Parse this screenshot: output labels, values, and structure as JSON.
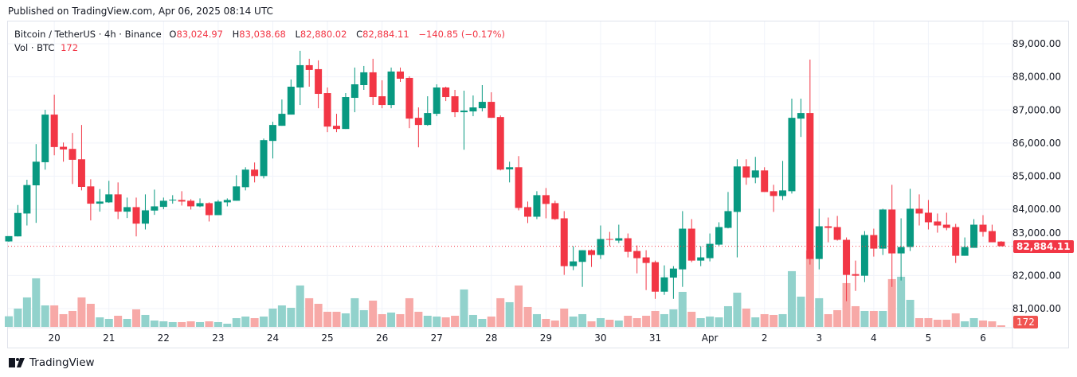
{
  "published": "Published on TradingView.com, Apr 06, 2025 08:14 UTC",
  "legend": {
    "symbol": "Bitcoin / TetherUS · 4h · Binance",
    "o_label": "O",
    "o": "83,024.97",
    "h_label": "H",
    "h": "83,038.68",
    "l_label": "L",
    "l": "82,880.02",
    "c_label": "C",
    "c": "82,884.11",
    "change": "−140.85 (−0.17%)",
    "vol_label": "Vol · BTC",
    "vol": "172"
  },
  "last_price_tag": "82,884.11",
  "last_volume_tag": "172",
  "footer_brand": "TradingView",
  "colors": {
    "up": "#089981",
    "down": "#f23645",
    "up_volume": "#92d2cc",
    "down_volume": "#f7a9a7",
    "grid": "#f0f3fa"
  },
  "chart_data": {
    "type": "candlestick",
    "interval": "4h",
    "price_axis": {
      "ticks": [
        "89,000.00",
        "88,000.00",
        "87,000.00",
        "86,000.00",
        "85,000.00",
        "84,000.00",
        "83,000.00",
        "82,000.00",
        "81,000.00"
      ],
      "tick_values": [
        89000,
        88000,
        87000,
        86000,
        85000,
        84000,
        83000,
        82000,
        81000
      ]
    },
    "time_axis": {
      "ticks": [
        {
          "label": "20",
          "time": "03-20 00:00"
        },
        {
          "label": "21",
          "time": "03-21 00:00"
        },
        {
          "label": "22",
          "time": "03-22 00:00"
        },
        {
          "label": "23",
          "time": "03-23 00:00"
        },
        {
          "label": "24",
          "time": "03-24 00:00"
        },
        {
          "label": "25",
          "time": "03-25 00:00"
        },
        {
          "label": "26",
          "time": "03-26 00:00"
        },
        {
          "label": "27",
          "time": "03-27 00:00"
        },
        {
          "label": "28",
          "time": "03-28 00:00"
        },
        {
          "label": "29",
          "time": "03-29 00:00"
        },
        {
          "label": "30",
          "time": "03-30 00:00"
        },
        {
          "label": "31",
          "time": "03-31 00:00"
        },
        {
          "label": "Apr",
          "time": "04-01 00:00"
        },
        {
          "label": "2",
          "time": "04-02 00:00"
        },
        {
          "label": "3",
          "time": "04-03 00:00"
        },
        {
          "label": "4",
          "time": "04-04 00:00"
        },
        {
          "label": "5",
          "time": "04-05 00:00"
        },
        {
          "label": "6",
          "time": "04-06 00:00"
        }
      ]
    },
    "last_price": 82884.11,
    "fields": [
      "time",
      "open",
      "high",
      "low",
      "close",
      "volume"
    ],
    "candles": [
      [
        "03-19 04:00",
        83030,
        83190,
        83020,
        83190,
        1148
      ],
      [
        "03-19 08:00",
        83182,
        84130,
        83180,
        83889,
        1980
      ],
      [
        "03-19 12:00",
        83873,
        84892,
        83511,
        84732,
        3186
      ],
      [
        "03-19 16:00",
        84724,
        85968,
        83591,
        85438,
        5252
      ],
      [
        "03-19 20:00",
        85422,
        87004,
        85197,
        86860,
        2325
      ],
      [
        "03-20 00:00",
        86860,
        87462,
        85631,
        85880,
        2325
      ],
      [
        "03-20 04:00",
        85888,
        86017,
        85438,
        85808,
        1378
      ],
      [
        "03-20 08:00",
        85824,
        86306,
        84764,
        85495,
        1722
      ],
      [
        "03-20 12:00",
        85511,
        86547,
        84571,
        84676,
        3186
      ],
      [
        "03-20 16:00",
        84692,
        84908,
        83664,
        84170,
        2497
      ],
      [
        "03-20 20:00",
        84170,
        84611,
        83929,
        84234,
        1033
      ],
      [
        "03-21 00:00",
        84210,
        84860,
        84194,
        84451,
        861
      ],
      [
        "03-21 04:00",
        84451,
        84812,
        83704,
        83929,
        1205
      ],
      [
        "03-21 08:00",
        83929,
        84354,
        83736,
        84065,
        861
      ],
      [
        "03-21 12:00",
        84065,
        84354,
        83182,
        83567,
        1894
      ],
      [
        "03-21 16:00",
        83567,
        84451,
        83391,
        83969,
        1292
      ],
      [
        "03-21 20:00",
        83961,
        84595,
        83832,
        84089,
        689
      ],
      [
        "03-22 00:00",
        84073,
        84354,
        84001,
        84258,
        603
      ],
      [
        "03-22 04:00",
        84266,
        84427,
        84170,
        84290,
        517
      ],
      [
        "03-22 08:00",
        84282,
        84547,
        84113,
        84234,
        517
      ],
      [
        "03-22 12:00",
        84258,
        84306,
        83993,
        84089,
        603
      ],
      [
        "03-22 16:00",
        84089,
        84330,
        84065,
        84186,
        517
      ],
      [
        "03-22 20:00",
        84186,
        84210,
        83632,
        83824,
        603
      ],
      [
        "03-23 00:00",
        83824,
        84282,
        83824,
        84234,
        517
      ],
      [
        "03-23 04:00",
        84210,
        84330,
        84089,
        84282,
        344
      ],
      [
        "03-23 08:00",
        84258,
        85029,
        84258,
        84692,
        947
      ],
      [
        "03-23 12:00",
        84668,
        85270,
        84571,
        85198,
        1119
      ],
      [
        "03-23 16:00",
        85198,
        85414,
        84812,
        85005,
        947
      ],
      [
        "03-23 20:00",
        85005,
        86137,
        84933,
        86089,
        1119
      ],
      [
        "03-24 00:00",
        86065,
        86643,
        85535,
        86547,
        1980
      ],
      [
        "03-24 04:00",
        86522,
        87317,
        86522,
        86884,
        2325
      ],
      [
        "03-24 08:00",
        86860,
        87920,
        86860,
        87703,
        2066
      ],
      [
        "03-24 12:00",
        87679,
        88787,
        87149,
        88353,
        4477
      ],
      [
        "03-24 16:00",
        88353,
        88546,
        87703,
        88209,
        3100
      ],
      [
        "03-24 20:00",
        88233,
        88498,
        87052,
        87486,
        2497
      ],
      [
        "03-25 00:00",
        87510,
        87679,
        86330,
        86498,
        1636
      ],
      [
        "03-25 04:00",
        86522,
        86884,
        86330,
        86426,
        1636
      ],
      [
        "03-25 08:00",
        86426,
        87510,
        86426,
        87390,
        1464
      ],
      [
        "03-25 12:00",
        87366,
        88281,
        86932,
        87775,
        3100
      ],
      [
        "03-25 16:00",
        87751,
        88329,
        87607,
        88137,
        1808
      ],
      [
        "03-25 20:00",
        88137,
        88546,
        87149,
        87390,
        2841
      ],
      [
        "03-26 00:00",
        87414,
        87896,
        87052,
        87149,
        1378
      ],
      [
        "03-26 04:00",
        87149,
        88281,
        87052,
        88161,
        1550
      ],
      [
        "03-26 08:00",
        88161,
        88281,
        87847,
        87944,
        1378
      ],
      [
        "03-26 12:00",
        87968,
        88016,
        86450,
        86739,
        3100
      ],
      [
        "03-26 16:00",
        86763,
        87077,
        85872,
        86547,
        1636
      ],
      [
        "03-26 20:00",
        86547,
        87414,
        86522,
        86908,
        1205
      ],
      [
        "03-27 00:00",
        86884,
        87775,
        86812,
        87679,
        1119
      ],
      [
        "03-27 04:00",
        87679,
        87703,
        87269,
        87390,
        1033
      ],
      [
        "03-27 08:00",
        87414,
        87607,
        86787,
        86932,
        1205
      ],
      [
        "03-27 12:00",
        86932,
        87582,
        85800,
        86980,
        4047
      ],
      [
        "03-27 16:00",
        86956,
        87438,
        86812,
        87077,
        1292
      ],
      [
        "03-27 20:00",
        87052,
        87751,
        86956,
        87245,
        861
      ],
      [
        "03-28 00:00",
        87245,
        87534,
        86763,
        86763,
        1119
      ],
      [
        "03-28 04:00",
        86787,
        86836,
        85174,
        85198,
        3100
      ],
      [
        "03-28 08:00",
        85206,
        85438,
        84812,
        85270,
        2669
      ],
      [
        "03-28 12:00",
        85270,
        85607,
        83968,
        84041,
        4477
      ],
      [
        "03-28 16:00",
        84065,
        84234,
        83584,
        83776,
        2153
      ],
      [
        "03-28 20:00",
        83776,
        84547,
        83704,
        84427,
        1378
      ],
      [
        "03-29 00:00",
        84427,
        84643,
        83728,
        84162,
        861
      ],
      [
        "03-29 04:00",
        84186,
        84258,
        83680,
        83704,
        689
      ],
      [
        "03-29 08:00",
        83728,
        83945,
        82018,
        82283,
        1980
      ],
      [
        "03-29 12:00",
        82283,
        82885,
        82162,
        82427,
        1119
      ],
      [
        "03-29 16:00",
        82412,
        82764,
        81657,
        82764,
        1378
      ],
      [
        "03-29 20:00",
        82764,
        82788,
        82259,
        82620,
        603
      ],
      [
        "03-30 00:00",
        82620,
        83511,
        82500,
        83102,
        947
      ],
      [
        "03-30 04:00",
        83102,
        83318,
        82885,
        83086,
        775
      ],
      [
        "03-30 08:00",
        83054,
        83535,
        82981,
        83126,
        689
      ],
      [
        "03-30 12:00",
        83126,
        83270,
        82548,
        82716,
        1205
      ],
      [
        "03-30 16:00",
        82740,
        82909,
        82066,
        82524,
        947
      ],
      [
        "03-30 20:00",
        82548,
        82764,
        81560,
        82379,
        1205
      ],
      [
        "03-31 00:00",
        82403,
        82451,
        81295,
        81512,
        1722
      ],
      [
        "03-31 04:00",
        81512,
        82307,
        81416,
        81945,
        1378
      ],
      [
        "03-31 08:00",
        81937,
        82283,
        81295,
        82210,
        1894
      ],
      [
        "03-31 12:00",
        82186,
        83945,
        81657,
        83415,
        3788
      ],
      [
        "03-31 16:00",
        83415,
        83704,
        82403,
        82451,
        1636
      ],
      [
        "03-31 20:00",
        82451,
        82885,
        82283,
        82548,
        947
      ],
      [
        "04-01 00:00",
        82524,
        83270,
        82427,
        82957,
        1119
      ],
      [
        "04-01 04:00",
        82933,
        83608,
        82885,
        83463,
        1033
      ],
      [
        "04-01 08:00",
        83439,
        84523,
        83423,
        83945,
        2239
      ],
      [
        "04-01 12:00",
        83921,
        85511,
        82548,
        85294,
        3702
      ],
      [
        "04-01 16:00",
        85294,
        85511,
        84740,
        84957,
        1980
      ],
      [
        "04-01 20:00",
        84957,
        85583,
        84788,
        85174,
        1033
      ],
      [
        "04-02 00:00",
        85174,
        85270,
        84523,
        84523,
        1378
      ],
      [
        "04-02 04:00",
        84547,
        84740,
        83921,
        84402,
        1292
      ],
      [
        "04-02 08:00",
        84402,
        85462,
        84282,
        84571,
        1378
      ],
      [
        "04-02 12:00",
        84547,
        87341,
        84475,
        86763,
        6027
      ],
      [
        "04-02 16:00",
        86739,
        87341,
        86185,
        86908,
        3272
      ],
      [
        "04-02 20:00",
        86908,
        88522,
        82331,
        82500,
        8266
      ],
      [
        "04-03 00:00",
        82500,
        84017,
        82186,
        83487,
        3100
      ],
      [
        "04-03 04:00",
        83487,
        83752,
        83005,
        83439,
        1378
      ],
      [
        "04-03 08:00",
        83463,
        83800,
        83054,
        83078,
        1808
      ],
      [
        "04-03 12:00",
        83078,
        83150,
        81223,
        82018,
        4736
      ],
      [
        "04-03 16:00",
        82042,
        82451,
        81536,
        81994,
        2239
      ],
      [
        "04-03 20:00",
        81994,
        83342,
        81801,
        83222,
        1722
      ],
      [
        "04-04 00:00",
        83222,
        83415,
        82572,
        82813,
        1722
      ],
      [
        "04-04 04:00",
        82813,
        84017,
        82620,
        83993,
        1722
      ],
      [
        "04-04 08:00",
        83993,
        84740,
        81657,
        82668,
        5166
      ],
      [
        "04-04 12:00",
        82668,
        83728,
        81849,
        82861,
        5424
      ],
      [
        "04-04 16:00",
        82861,
        84619,
        82740,
        84017,
        2927
      ],
      [
        "04-04 20:00",
        84017,
        84450,
        83511,
        83873,
        947
      ],
      [
        "04-05 00:00",
        83897,
        84282,
        83391,
        83608,
        947
      ],
      [
        "04-05 04:00",
        83632,
        83873,
        83294,
        83511,
        775
      ],
      [
        "04-05 08:00",
        83535,
        83897,
        83367,
        83439,
        775
      ],
      [
        "04-05 12:00",
        83463,
        83559,
        82379,
        82596,
        1464
      ],
      [
        "04-05 16:00",
        82596,
        83150,
        82596,
        82861,
        603
      ],
      [
        "04-05 20:00",
        82837,
        83704,
        82837,
        83535,
        947
      ],
      [
        "04-06 00:00",
        83535,
        83824,
        83174,
        83318,
        689
      ],
      [
        "04-06 04:00",
        83342,
        83535,
        83005,
        83005,
        603
      ],
      [
        "04-06 08:00",
        83024.97,
        83038.68,
        82880.02,
        82884.11,
        172
      ]
    ]
  }
}
